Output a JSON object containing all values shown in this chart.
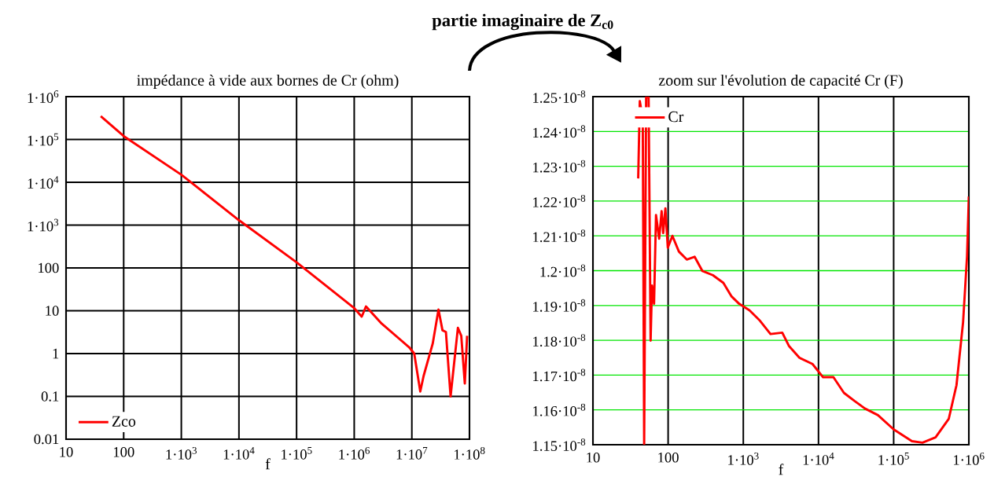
{
  "chart_data": [
    {
      "type": "line",
      "title": "impédance à vide aux bornes de Cr  (ohm)",
      "xlabel": "f",
      "annotations": [
        "**partie imaginaire de Z$_{c0}$**"
      ],
      "log": "xy",
      "grid": true,
      "legend": "bottom left",
      "marker": "none",
      "line_style": "solid",
      "xlim": [
        10,
        100000000
      ],
      "ylim": [
        0.01,
        1000000
      ],
      "xticks": [
        10,
        100,
        {
          "value": 1000,
          "label": "1·10$^{3}$"
        },
        {
          "value": 10000,
          "label": "1·10$^{4}$"
        },
        {
          "value": 100000,
          "label": "1·10$^{5}$"
        },
        {
          "value": 1000000,
          "label": "1·10$^{6}$"
        },
        {
          "value": 10000000,
          "label": "1·10$^{7}$"
        },
        {
          "value": 100000000,
          "label": "1·10$^{8}$"
        }
      ],
      "yticks": [
        0.01,
        0.1,
        1,
        10,
        100,
        {
          "value": 1000,
          "label": "1·10$^{3}$"
        },
        {
          "value": 10000,
          "label": "1·10$^{4}$"
        },
        {
          "value": 100000,
          "label": "1·10$^{5}$"
        },
        {
          "value": 1000000,
          "label": "1·10$^{6}$"
        }
      ],
      "series": [
        {
          "name": "Zco",
          "color": "#ff0000",
          "x": [
            40,
            100,
            1000,
            10000,
            100000,
            1000000,
            1350000,
            1600000,
            3000000,
            9000000,
            11000000,
            14000000,
            16000000,
            23000000,
            29000000,
            34000000,
            39000000,
            47000000,
            63000000,
            72000000,
            83000000,
            91000000
          ],
          "values": [
            350000,
            120000,
            15000,
            1300,
            135,
            11.5,
            7.3,
            12.6,
            5,
            1.4,
            1,
            0.13,
            0.3,
            1.7,
            10.7,
            3.5,
            3.2,
            0.1,
            4,
            2.6,
            0.2,
            2.6
          ]
        }
      ]
    },
    {
      "type": "line",
      "title": "zoom sur l'évolution de capacité Cr  (F)",
      "xlabel": "f",
      "log": "x",
      "grid": true,
      "legend": "top left",
      "marker": "none",
      "line_style": "solid",
      "xlim": [
        10,
        1000000
      ],
      "ylim": [
        1.15e-08,
        1.25e-08
      ],
      "xticks": [
        10,
        100,
        {
          "value": 1000,
          "label": "1·10$^{3}$"
        },
        {
          "value": 10000,
          "label": "1·10$^{4}$"
        },
        {
          "value": 100000,
          "label": "1·10$^{5}$"
        },
        {
          "value": 1000000,
          "label": "1·10$^{6}$"
        }
      ],
      "yticks": [
        {
          "value": 1.15e-08,
          "label": "1.15·10$^{-8}$"
        },
        {
          "value": 1.16e-08,
          "label": "1.16·10$^{-8}$"
        },
        {
          "value": 1.17e-08,
          "label": "1.17·10$^{-8}$"
        },
        {
          "value": 1.18e-08,
          "label": "1.18·10$^{-8}$"
        },
        {
          "value": 1.19e-08,
          "label": "1.19·10$^{-8}$"
        },
        {
          "value": 1.2e-08,
          "label": "1.2·10$^{-8}$"
        },
        {
          "value": 1.21e-08,
          "label": "1.21·10$^{-8}$"
        },
        {
          "value": 1.22e-08,
          "label": "1.22·10$^{-8}$"
        },
        {
          "value": 1.23e-08,
          "label": "1.23·10$^{-8}$"
        },
        {
          "value": 1.24e-08,
          "label": "1.24·10$^{-8}$"
        },
        {
          "value": 1.25e-08,
          "label": "1.25·10$^{-8}$"
        }
      ],
      "series": [
        {
          "name": "Cr",
          "color": "#ff0000",
          "x": [
            40,
            42,
            46,
            48,
            51,
            55,
            58.5,
            61,
            65,
            69,
            76,
            82,
            86,
            92,
            99,
            114,
            139,
            177,
            225,
            286,
            394,
            543,
            692,
            879,
            1210,
            1670,
            2300,
            3300,
            4040,
            5570,
            8320,
            11500,
            15800,
            21800,
            30000,
            41400,
            61800,
            100000,
            175000,
            242000,
            361000,
            540000,
            685000,
            838000,
            946000,
            1000000
          ],
          "values": [
            1.2265e-08,
            1.2487e-08,
            1.2438e-08,
            1.1502e-08,
            1.2498e-08,
            1.2498e-08,
            1.1799e-08,
            1.1957e-08,
            1.1905e-08,
            1.216e-08,
            1.2092e-08,
            1.2171e-08,
            1.2108e-08,
            1.2179e-08,
            1.2066e-08,
            1.21e-08,
            1.2055e-08,
            1.2032e-08,
            1.204e-08,
            1.1999e-08,
            1.1987e-08,
            1.1965e-08,
            1.1927e-08,
            1.1905e-08,
            1.1886e-08,
            1.1856e-08,
            1.1818e-08,
            1.1822e-08,
            1.1784e-08,
            1.175e-08,
            1.1732e-08,
            1.1694e-08,
            1.1694e-08,
            1.1649e-08,
            1.1626e-08,
            1.1604e-08,
            1.1585e-08,
            1.1544e-08,
            1.151e-08,
            1.1506e-08,
            1.1521e-08,
            1.1574e-08,
            1.1671e-08,
            1.1852e-08,
            1.204e-08,
            1.2213e-08
          ]
        }
      ]
    }
  ]
}
